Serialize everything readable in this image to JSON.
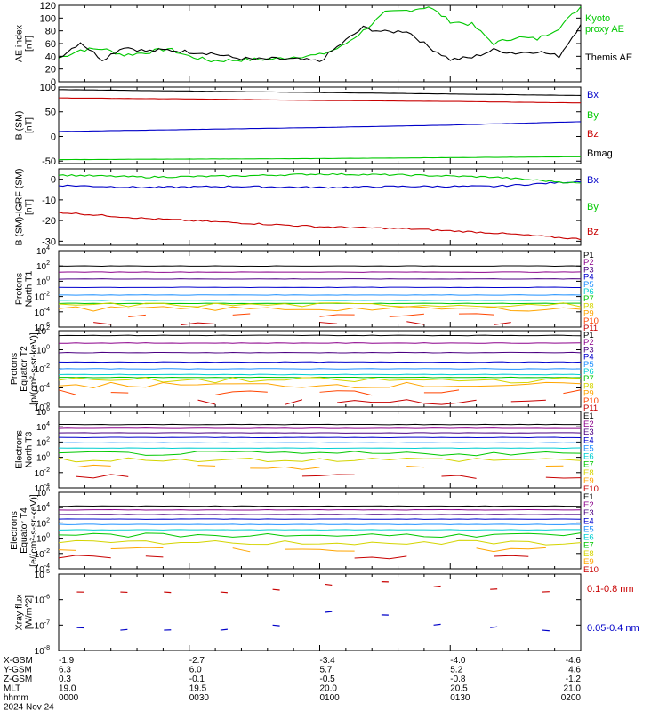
{
  "figure": {
    "x_ticks": [
      {
        "hhmm": "0000",
        "xgsm": "-1.9",
        "ygsm": "6.3",
        "zgsm": "0.3",
        "mlt": "19.0"
      },
      {
        "hhmm": "0030",
        "xgsm": "-2.7",
        "ygsm": "6.0",
        "zgsm": "-0.1",
        "mlt": "19.5"
      },
      {
        "hhmm": "0100",
        "xgsm": "-3.4",
        "ygsm": "5.7",
        "zgsm": "-0.5",
        "mlt": "20.0"
      },
      {
        "hhmm": "0130",
        "xgsm": "-4.0",
        "ygsm": "5.2",
        "zgsm": "-0.8",
        "mlt": "20.5"
      },
      {
        "hhmm": "0200",
        "xgsm": "-4.6",
        "ygsm": "4.6",
        "zgsm": "-1.2",
        "mlt": "21.0"
      }
    ],
    "row_labels": [
      "X-GSM",
      "Y-GSM",
      "Z-GSM",
      "MLT",
      "hhmm"
    ],
    "date_label": "2024 Nov 24"
  },
  "colors": {
    "p_series": [
      "#000000",
      "#8b008b",
      "#4b0082",
      "#0000cd",
      "#1e90ff",
      "#00ced1",
      "#00c800",
      "#d4d400",
      "#ffa500",
      "#ff4500",
      "#c80000"
    ],
    "bx": "#0000c8",
    "by": "#00c800",
    "bz": "#c80000",
    "bmag": "#000000",
    "ae_themis": "#000000",
    "ae_kyoto": "#00c800",
    "xray_long": "#c80000",
    "xray_short": "#0000c8"
  },
  "chart_data": [
    {
      "type": "line",
      "panel": "ae",
      "ylabel": "AE index [nT]",
      "ylim": [
        0,
        120
      ],
      "yticks": [
        "0",
        "20",
        "40",
        "60",
        "80",
        "100",
        "120"
      ],
      "xlim_minutes": [
        0,
        120
      ],
      "series": [
        {
          "name": "Kyoto proxy AE",
          "color_key": "ae_kyoto",
          "x": [
            0,
            5,
            10,
            15,
            20,
            25,
            30,
            35,
            40,
            45,
            50,
            55,
            60,
            65,
            70,
            75,
            80,
            85,
            90,
            95,
            100,
            105,
            110,
            115,
            120
          ],
          "y": [
            37,
            50,
            52,
            42,
            46,
            52,
            40,
            33,
            34,
            35,
            36,
            40,
            42,
            55,
            80,
            108,
            112,
            118,
            95,
            90,
            60,
            70,
            67,
            85,
            118
          ]
        },
        {
          "name": "Themis AE",
          "color_key": "ae_themis",
          "x": [
            0,
            5,
            10,
            15,
            20,
            25,
            30,
            35,
            40,
            45,
            50,
            55,
            60,
            65,
            70,
            75,
            80,
            85,
            90,
            95,
            100,
            105,
            110,
            115,
            120
          ],
          "y": [
            38,
            62,
            35,
            55,
            48,
            50,
            47,
            45,
            38,
            35,
            36,
            35,
            32,
            60,
            85,
            78,
            80,
            55,
            35,
            38,
            50,
            45,
            48,
            40,
            90
          ]
        }
      ]
    },
    {
      "type": "line",
      "panel": "b_sm",
      "ylabel": "B (SM) [nT]",
      "ylim": [
        -55,
        100
      ],
      "yticks": [
        "-50",
        "0",
        "50",
        "100"
      ],
      "series": [
        {
          "name": "Bx",
          "color_key": "bx",
          "x": [
            0,
            30,
            60,
            90,
            120
          ],
          "y": [
            10,
            14,
            18,
            23,
            30
          ]
        },
        {
          "name": "By",
          "color_key": "by",
          "x": [
            0,
            30,
            60,
            90,
            120
          ],
          "y": [
            -47,
            -46,
            -45,
            -43,
            -41
          ]
        },
        {
          "name": "Bz",
          "color_key": "bz",
          "x": [
            0,
            30,
            60,
            90,
            120
          ],
          "y": [
            78,
            76,
            73,
            71,
            68
          ]
        },
        {
          "name": "Bmag",
          "color_key": "bmag",
          "x": [
            0,
            30,
            60,
            90,
            120
          ],
          "y": [
            95,
            92,
            89,
            86,
            83
          ]
        }
      ]
    },
    {
      "type": "line",
      "panel": "b_igrf",
      "ylabel": "B (SM)-IGRF (SM) [nT]",
      "ylim": [
        -32,
        5
      ],
      "yticks": [
        "-30",
        "-20",
        "-10",
        "0"
      ],
      "series": [
        {
          "name": "Bx",
          "color_key": "bx",
          "x": [
            0,
            20,
            40,
            60,
            80,
            100,
            120
          ],
          "y": [
            -3,
            -4,
            -3.5,
            -4,
            -3.5,
            -3.5,
            -1
          ]
        },
        {
          "name": "By",
          "color_key": "by",
          "x": [
            0,
            20,
            40,
            60,
            80,
            100,
            120
          ],
          "y": [
            2,
            1,
            1.5,
            2.5,
            2,
            1,
            -2
          ]
        },
        {
          "name": "Bz",
          "color_key": "bz",
          "x": [
            0,
            20,
            40,
            60,
            80,
            100,
            120
          ],
          "y": [
            -16,
            -19,
            -21,
            -23,
            -24,
            -26,
            -29
          ]
        }
      ]
    },
    {
      "type": "line",
      "panel": "protons_north",
      "ylabel": "Protons North T1",
      "yscale": "log",
      "ylim_exp": [
        -6,
        4
      ],
      "ytick_exps": [
        -6,
        -4,
        -2,
        0,
        2,
        4
      ],
      "series": [
        {
          "name": "P1",
          "log10": 2.0
        },
        {
          "name": "P2",
          "log10": 1.2
        },
        {
          "name": "P3",
          "log10": 0.3
        },
        {
          "name": "P4",
          "log10": -0.8
        },
        {
          "name": "P5",
          "log10": -1.8
        },
        {
          "name": "P6",
          "log10": -2.5
        },
        {
          "name": "P7",
          "log10": -2.9
        },
        {
          "name": "P8",
          "log10": -3.1
        },
        {
          "name": "P9",
          "log10": -3.6
        },
        {
          "name": "P10",
          "log10": -4.5
        },
        {
          "name": "P11",
          "log10": -5.5
        }
      ]
    },
    {
      "type": "line",
      "panel": "protons_equator",
      "ylabel": "Protons Equator T2 [p/(cm²-s-sr-keV)]",
      "yscale": "log",
      "ylim_exp": [
        -6,
        2
      ],
      "ytick_exps": [
        -6,
        -4,
        -2,
        0,
        2
      ],
      "series": [
        {
          "name": "P1",
          "log10": 1.5
        },
        {
          "name": "P2",
          "log10": 0.7
        },
        {
          "name": "P3",
          "log10": -0.3
        },
        {
          "name": "P4",
          "log10": -1.3
        },
        {
          "name": "P5",
          "log10": -2.0
        },
        {
          "name": "P6",
          "log10": -2.6
        },
        {
          "name": "P7",
          "log10": -2.9
        },
        {
          "name": "P8",
          "log10": -3.2
        },
        {
          "name": "P9",
          "log10": -3.7
        },
        {
          "name": "P10",
          "log10": -4.5
        },
        {
          "name": "P11",
          "log10": -5.5
        }
      ]
    },
    {
      "type": "line",
      "panel": "electrons_north",
      "ylabel": "Electrons North T3",
      "yscale": "log",
      "ylim_exp": [
        -4,
        6
      ],
      "ytick_exps": [
        -4,
        -2,
        0,
        2,
        4,
        6
      ],
      "series": [
        {
          "name": "E1",
          "log10": 4.3
        },
        {
          "name": "E2",
          "log10": 3.8
        },
        {
          "name": "E3",
          "log10": 3.2
        },
        {
          "name": "E4",
          "log10": 2.6
        },
        {
          "name": "E5",
          "log10": 1.9
        },
        {
          "name": "E6",
          "log10": 1.2
        },
        {
          "name": "E7",
          "log10": 0.5
        },
        {
          "name": "E8",
          "log10": -0.3
        },
        {
          "name": "E9",
          "log10": -1.3
        },
        {
          "name": "E10",
          "log10": -2.5
        }
      ]
    },
    {
      "type": "line",
      "panel": "electrons_equator",
      "ylabel": "Electrons Equator T4 [e/(cm²-s-sr-keV)]",
      "yscale": "log",
      "ylim_exp": [
        -4,
        6
      ],
      "ytick_exps": [
        -4,
        -2,
        0,
        2,
        4,
        6
      ],
      "series": [
        {
          "name": "E1",
          "log10": 4.2
        },
        {
          "name": "E2",
          "log10": 3.7
        },
        {
          "name": "E3",
          "log10": 3.1
        },
        {
          "name": "E4",
          "log10": 2.5
        },
        {
          "name": "E5",
          "log10": 1.8
        },
        {
          "name": "E6",
          "log10": 1.1
        },
        {
          "name": "E7",
          "log10": 0.4
        },
        {
          "name": "E8",
          "log10": -0.6
        },
        {
          "name": "E9",
          "log10": -1.5
        },
        {
          "name": "E10",
          "log10": -2.4
        }
      ]
    },
    {
      "type": "line",
      "panel": "xray",
      "ylabel": "Xray flux [W/m^2]",
      "yscale": "log",
      "ylim_exp": [
        -8,
        -5
      ],
      "ytick_exps": [
        -8,
        -7,
        -6,
        -5
      ],
      "series": [
        {
          "name": "0.1-0.8 nm",
          "color_key": "xray_long",
          "x": [
            5,
            15,
            25,
            38,
            50,
            62,
            75,
            87,
            100,
            112
          ],
          "y": [
            -5.7,
            -5.7,
            -5.7,
            -5.7,
            -5.6,
            -5.4,
            -5.3,
            -5.5,
            -5.6,
            -5.7
          ]
        },
        {
          "name": "0.05-0.4 nm",
          "color_key": "xray_short",
          "x": [
            5,
            15,
            25,
            38,
            50,
            62,
            75,
            87,
            100,
            112
          ],
          "y": [
            -7.1,
            -7.2,
            -7.2,
            -7.2,
            -7.0,
            -6.5,
            -6.6,
            -7.0,
            -7.1,
            -7.2
          ]
        }
      ]
    }
  ]
}
